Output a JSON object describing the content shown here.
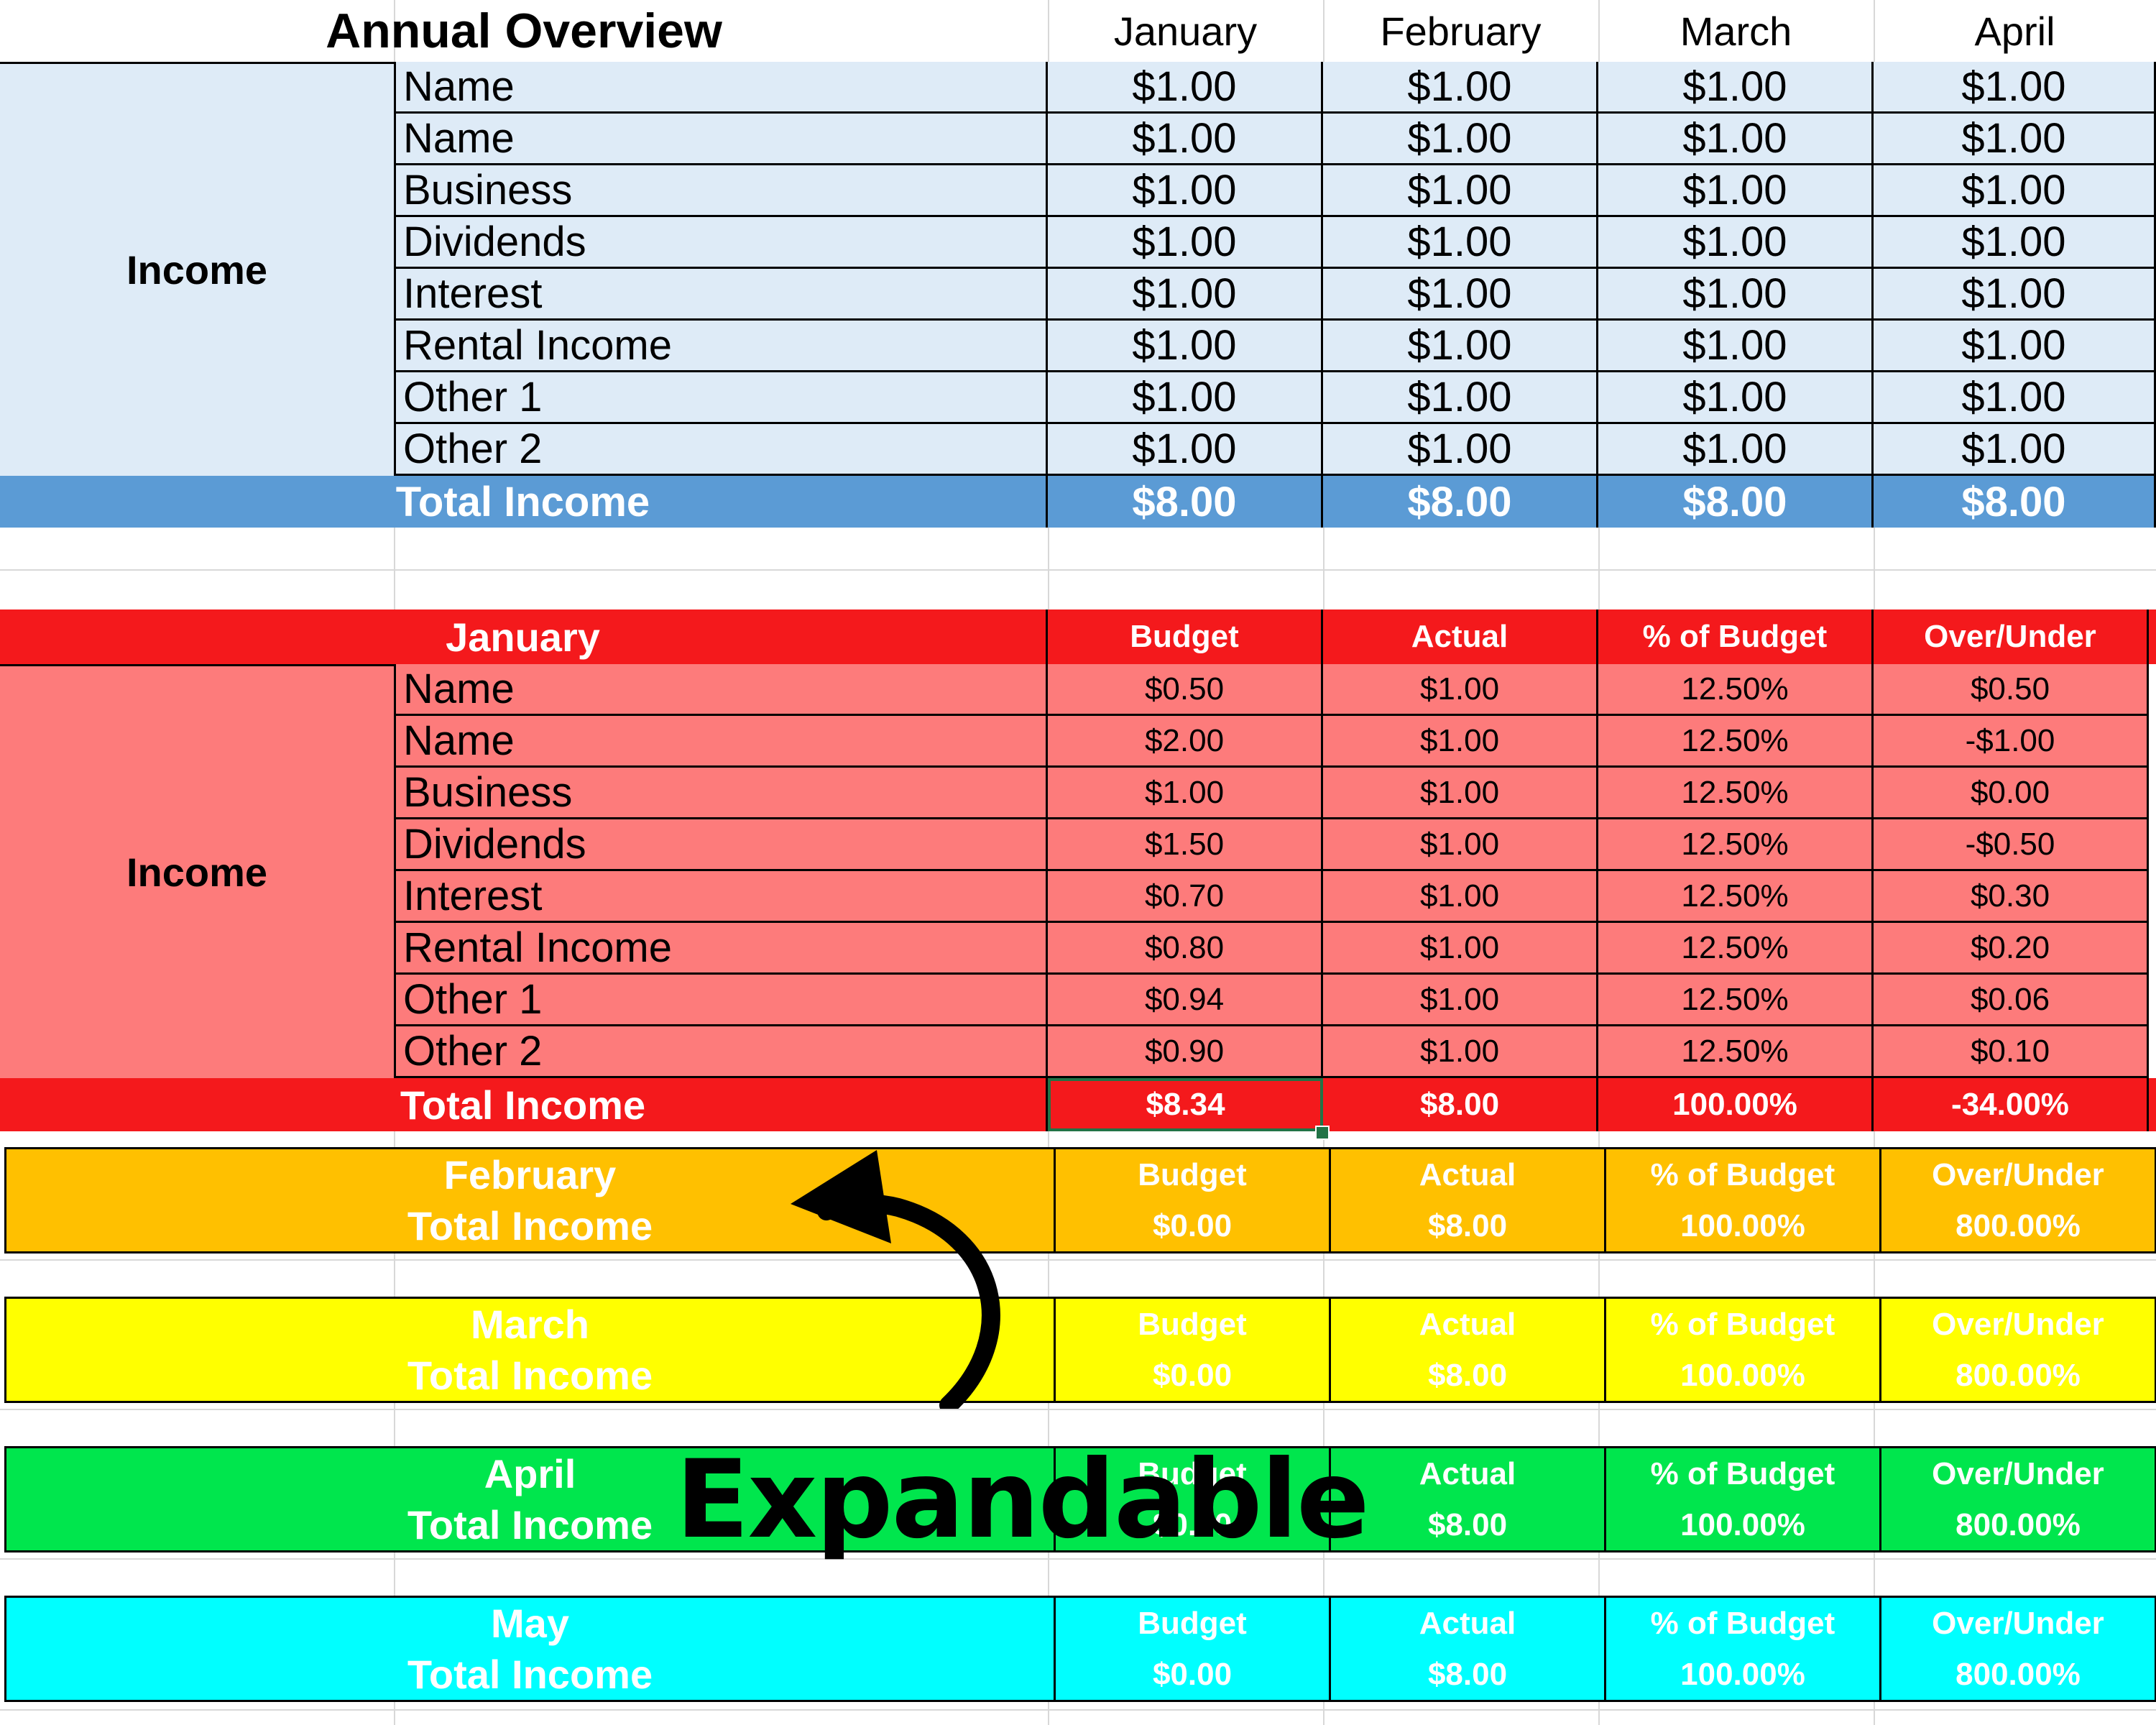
{
  "annual": {
    "title": "Annual Overview",
    "months": [
      "January",
      "February",
      "March",
      "April"
    ],
    "group_label": "Income",
    "rows": [
      {
        "label": "Name",
        "values": [
          "$1.00",
          "$1.00",
          "$1.00",
          "$1.00"
        ]
      },
      {
        "label": "Name",
        "values": [
          "$1.00",
          "$1.00",
          "$1.00",
          "$1.00"
        ]
      },
      {
        "label": "Business",
        "values": [
          "$1.00",
          "$1.00",
          "$1.00",
          "$1.00"
        ]
      },
      {
        "label": "Dividends",
        "values": [
          "$1.00",
          "$1.00",
          "$1.00",
          "$1.00"
        ]
      },
      {
        "label": "Interest",
        "values": [
          "$1.00",
          "$1.00",
          "$1.00",
          "$1.00"
        ]
      },
      {
        "label": "Rental Income",
        "values": [
          "$1.00",
          "$1.00",
          "$1.00",
          "$1.00"
        ]
      },
      {
        "label": "Other 1",
        "values": [
          "$1.00",
          "$1.00",
          "$1.00",
          "$1.00"
        ]
      },
      {
        "label": "Other 2",
        "values": [
          "$1.00",
          "$1.00",
          "$1.00",
          "$1.00"
        ]
      }
    ],
    "total": {
      "label": "Total Income",
      "values": [
        "$8.00",
        "$8.00",
        "$8.00",
        "$8.00"
      ]
    }
  },
  "january": {
    "title": "January",
    "columns": [
      "Budget",
      "Actual",
      "% of Budget",
      "Over/Under"
    ],
    "group_label": "Income",
    "rows": [
      {
        "label": "Name",
        "values": [
          "$0.50",
          "$1.00",
          "12.50%",
          "$0.50"
        ]
      },
      {
        "label": "Name",
        "values": [
          "$2.00",
          "$1.00",
          "12.50%",
          "-$1.00"
        ]
      },
      {
        "label": "Business",
        "values": [
          "$1.00",
          "$1.00",
          "12.50%",
          "$0.00"
        ]
      },
      {
        "label": "Dividends",
        "values": [
          "$1.50",
          "$1.00",
          "12.50%",
          "-$0.50"
        ]
      },
      {
        "label": "Interest",
        "values": [
          "$0.70",
          "$1.00",
          "12.50%",
          "$0.30"
        ]
      },
      {
        "label": "Rental Income",
        "values": [
          "$0.80",
          "$1.00",
          "12.50%",
          "$0.20"
        ]
      },
      {
        "label": "Other 1",
        "values": [
          "$0.94",
          "$1.00",
          "12.50%",
          "$0.06"
        ]
      },
      {
        "label": "Other 2",
        "values": [
          "$0.90",
          "$1.00",
          "12.50%",
          "$0.10"
        ]
      }
    ],
    "total": {
      "label": "Total Income",
      "values": [
        "$8.34",
        "$8.00",
        "100.00%",
        "-34.00%"
      ]
    }
  },
  "months": [
    {
      "title": "February",
      "color": "#ffc000",
      "columns": [
        "Budget",
        "Actual",
        "% of Budget",
        "Over/Under"
      ],
      "total_label": "Total Income",
      "total_values": [
        "$0.00",
        "$8.00",
        "100.00%",
        "800.00%"
      ]
    },
    {
      "title": "March",
      "color": "#ffff00",
      "columns": [
        "Budget",
        "Actual",
        "% of Budget",
        "Over/Under"
      ],
      "total_label": "Total Income",
      "total_values": [
        "$0.00",
        "$8.00",
        "100.00%",
        "800.00%"
      ]
    },
    {
      "title": "April",
      "color": "#00e64d",
      "columns": [
        "Budget",
        "Actual",
        "% of Budget",
        "Over/Under"
      ],
      "total_label": "Total Income",
      "total_values": [
        "$0.00",
        "$8.00",
        "100.00%",
        "800.00%"
      ]
    },
    {
      "title": "May",
      "color": "#00ffff",
      "columns": [
        "Budget",
        "Actual",
        "% of Budget",
        "Over/Under"
      ],
      "total_label": "Total Income",
      "total_values": [
        "$0.00",
        "$8.00",
        "100.00%",
        "800.00%"
      ]
    }
  ],
  "overlay": {
    "caption": "Expandable",
    "arrow_icon": "curved-arrow-icon"
  }
}
